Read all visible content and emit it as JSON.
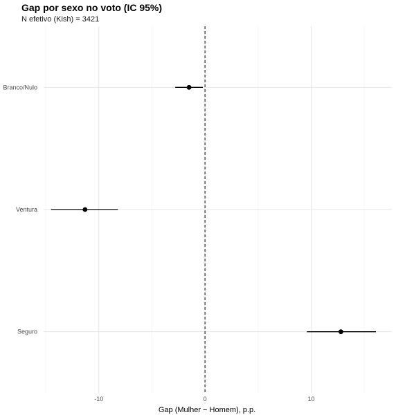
{
  "chart_data": {
    "type": "scatter",
    "title": "Gap por sexo no voto (IC 95%)",
    "subtitle": "N efetivo (Kish) = 3421",
    "xlabel": "Gap (Mulher − Homem), p.p.",
    "ylabel": "",
    "xlim": [
      -15.2,
      17.6
    ],
    "x_ticks": [
      -10,
      0,
      10
    ],
    "x_tick_labels": [
      "-10",
      "0",
      "10"
    ],
    "reference_line": {
      "x": 0,
      "style": "dashed"
    },
    "grid": true,
    "categories": [
      "Branco/Nulo",
      "Ventura",
      "Seguro"
    ],
    "points": [
      {
        "category": "Branco/Nulo",
        "estimate": -1.5,
        "ci_low": -2.8,
        "ci_high": -0.2
      },
      {
        "category": "Ventura",
        "estimate": -11.3,
        "ci_low": -14.5,
        "ci_high": -8.2
      },
      {
        "category": "Seguro",
        "estimate": 12.8,
        "ci_low": 9.6,
        "ci_high": 16.1
      }
    ]
  }
}
